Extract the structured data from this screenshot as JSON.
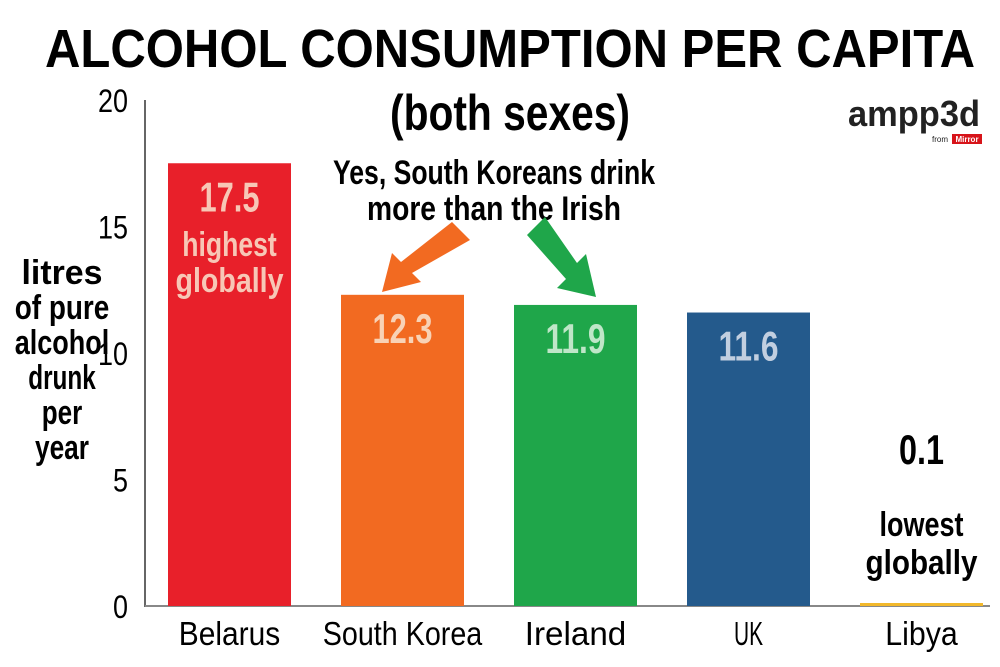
{
  "chart_data": {
    "type": "bar",
    "title": "ALCOHOL CONSUMPTION PER CAPITA",
    "subtitle": "(both sexes)",
    "ylabel": [
      "litres",
      "of pure",
      "alcohol",
      "drunk",
      "per",
      "year"
    ],
    "xlabel": "",
    "ylim": [
      0,
      20
    ],
    "yticks": [
      0,
      5,
      10,
      15,
      20
    ],
    "grid": false,
    "categories": [
      "Belarus",
      "South Korea",
      "Ireland",
      "UK",
      "Libya"
    ],
    "values": [
      17.5,
      12.3,
      11.9,
      11.6,
      0.1
    ],
    "value_labels": [
      "17.5",
      "12.3",
      "11.9",
      "11.6",
      "0.1"
    ],
    "bar_colors": [
      "#e8202a",
      "#f26a21",
      "#1fa64a",
      "#245a8c",
      "#f2b82b"
    ],
    "value_label_colors": [
      "#f7c7b6",
      "#f8d2b6",
      "#bfe6c8",
      "#c2cfe0",
      "#000000"
    ],
    "annotations": {
      "belarus": [
        "highest",
        "globally"
      ],
      "libya": [
        "lowest",
        "globally"
      ],
      "callout": [
        "Yes, South Koreans drink",
        "more than the Irish"
      ]
    },
    "arrow_colors": [
      "#f26a21",
      "#1fa64a"
    ]
  },
  "logo": {
    "name": "ampp3d",
    "from": "from",
    "brand": "Mirror"
  }
}
